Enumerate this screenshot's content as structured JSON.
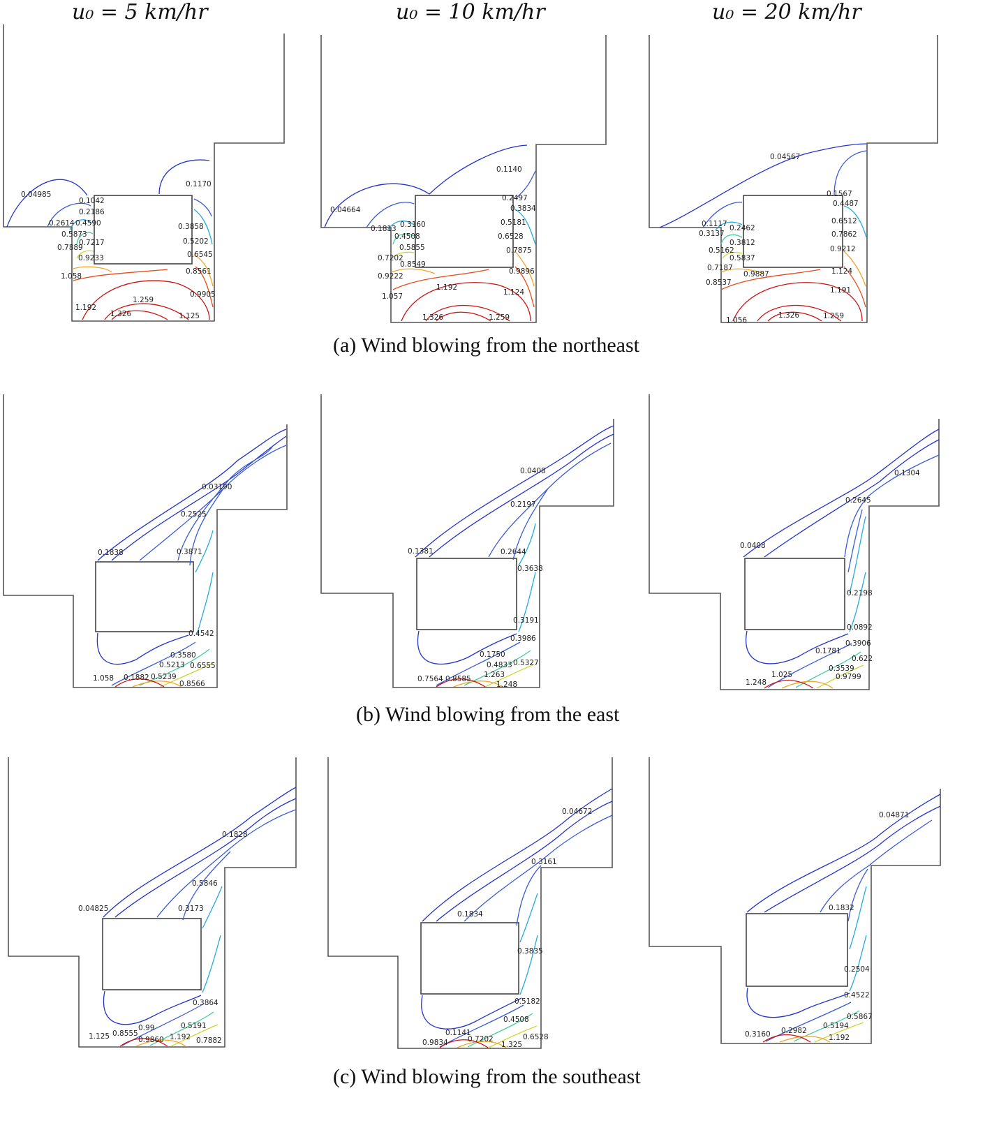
{
  "column_headers": [
    "u₀ = 5 km/hr",
    "u₀ = 10 km/hr",
    "u₀ = 20 km/hr"
  ],
  "captions": {
    "a": "(a)  Wind blowing from the northeast",
    "b": "(b)  Wind blowing from the east",
    "c": "(c)  Wind blowing from the southeast"
  },
  "contour_colors": [
    "#2233cc",
    "#3a5bd9",
    "#22aadd",
    "#44cc99",
    "#ccd633",
    "#f2a323",
    "#e64a19",
    "#cc1111"
  ],
  "panels": {
    "a1": [
      "0.04985",
      "0.1042",
      "0.2186",
      "0.2614",
      "0.4590",
      "0.5873",
      "0.7217",
      "0.7889",
      "0.9233",
      "1.058",
      "1.192",
      "1.326",
      "1.259",
      "1.125",
      "0.1170",
      "0.3858",
      "0.5202",
      "0.6545",
      "0.8561",
      "0.9905"
    ],
    "a2": [
      "0.1140",
      "0.2497",
      "0.3834",
      "0.5181",
      "0.6528",
      "0.7875",
      "0.9896",
      "1.124",
      "0.04664",
      "0.1813",
      "0.3160",
      "0.4508",
      "0.5855",
      "0.7202",
      "0.8549",
      "0.9222",
      "1.057",
      "1.192",
      "1.326",
      "1.259"
    ],
    "a3": [
      "0.04567",
      "0.1567",
      "0.4487",
      "0.6512",
      "0.7862",
      "0.9212",
      "1.124",
      "1.191",
      "0.1117",
      "0.3137",
      "0.2462",
      "0.3812",
      "0.5162",
      "0.5837",
      "0.7187",
      "0.8537",
      "0.9887",
      "1.056",
      "1.326",
      "1.259"
    ],
    "b1": [
      "0.03190",
      "0.2525",
      "0.1838",
      "0.3871",
      "0.4542",
      "0.3580",
      "0.5213",
      "0.6555",
      "1.058",
      "0.1882",
      "0.5239",
      "0.8566"
    ],
    "b2": [
      "0.0408",
      "0.2197",
      "0.1381",
      "0.2644",
      "0.3638",
      "0.3191",
      "0.3986",
      "0.1750",
      "0.4833",
      "0.5327",
      "0.7564",
      "0.8585",
      "1.263",
      "1.248"
    ],
    "b3": [
      "0.1304",
      "0.2645",
      "0.0408",
      "0.2198",
      "0.0892",
      "0.3906",
      "0.1781",
      "0.622",
      "0.3539",
      "0.9799",
      "1.025",
      "1.248"
    ],
    "c1": [
      "0.1828",
      "0.5846",
      "0.04825",
      "0.3173",
      "0.3864",
      "0.5191",
      "0.99",
      "0.7882",
      "1.125",
      "0.8555",
      "0.9860",
      "1.192"
    ],
    "c2": [
      "0.04672",
      "0.3161",
      "0.1834",
      "0.3835",
      "0.5182",
      "0.4508",
      "0.1141",
      "0.6528",
      "0.9834",
      "0.7202",
      "1.325"
    ],
    "c3": [
      "0.04871",
      "0.1832",
      "0.2504",
      "0.4522",
      "0.5867",
      "0.5194",
      "0.3160",
      "0.2982",
      "1.192"
    ]
  }
}
